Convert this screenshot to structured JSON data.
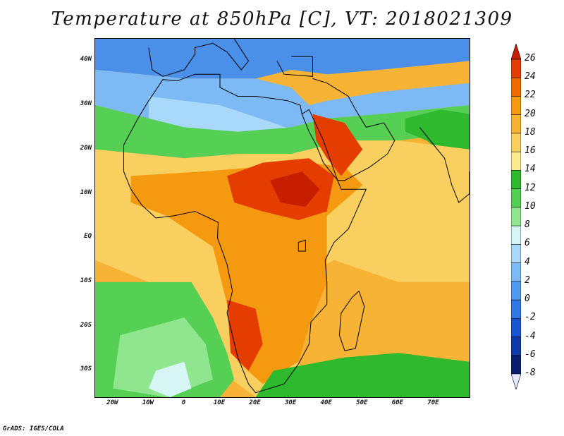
{
  "title": "Temperature at 850hPa [C], VT: 2018021309",
  "credit": "GrADS: IGES/COLA",
  "map": {
    "lon_range": [
      -25,
      80
    ],
    "lat_range": [
      -36,
      45
    ],
    "lat_ticks": [
      {
        "value": 40,
        "label": "40N"
      },
      {
        "value": 30,
        "label": "30N"
      },
      {
        "value": 20,
        "label": "20N"
      },
      {
        "value": 10,
        "label": "10N"
      },
      {
        "value": 0,
        "label": "EQ"
      },
      {
        "value": -10,
        "label": "10S"
      },
      {
        "value": -20,
        "label": "20S"
      },
      {
        "value": -30,
        "label": "30S"
      }
    ],
    "lon_ticks": [
      {
        "value": -20,
        "label": "20W"
      },
      {
        "value": -10,
        "label": "10W"
      },
      {
        "value": 0,
        "label": "0"
      },
      {
        "value": 10,
        "label": "10E"
      },
      {
        "value": 20,
        "label": "20E"
      },
      {
        "value": 30,
        "label": "30E"
      },
      {
        "value": 40,
        "label": "40E"
      },
      {
        "value": 50,
        "label": "50E"
      },
      {
        "value": 60,
        "label": "60E"
      },
      {
        "value": 70,
        "label": "70E"
      }
    ]
  },
  "colorbar": {
    "labels": [
      "26",
      "24",
      "22",
      "20",
      "18",
      "16",
      "14",
      "12",
      "10",
      "8",
      "6",
      "4",
      "2",
      "0",
      "-2",
      "-4",
      "-6",
      "-8"
    ],
    "colors": [
      "#c81e00",
      "#e53c00",
      "#f06a00",
      "#f59a10",
      "#f7b335",
      "#f9d060",
      "#fbea90",
      "#2eb92e",
      "#55d055",
      "#8fe68f",
      "#d7f5f5",
      "#a8d8fa",
      "#7cb9f5",
      "#509bf0",
      "#2f78e6",
      "#1b55d2",
      "#0e3aa8",
      "#0a1e6e"
    ]
  },
  "regions": [
    {
      "name": "europe-cold",
      "color": "#4a8fe8",
      "points": [
        [
          -25,
          45
        ],
        [
          80,
          45
        ],
        [
          80,
          40
        ],
        [
          55,
          38
        ],
        [
          40,
          37
        ],
        [
          30,
          38
        ],
        [
          20,
          36
        ],
        [
          0,
          36
        ],
        [
          -25,
          38
        ]
      ]
    },
    {
      "name": "med-cool",
      "color": "#7cb9f5",
      "points": [
        [
          -25,
          38
        ],
        [
          0,
          36
        ],
        [
          20,
          36
        ],
        [
          30,
          34
        ],
        [
          35,
          30
        ],
        [
          40,
          31
        ],
        [
          55,
          33
        ],
        [
          80,
          35
        ],
        [
          80,
          30
        ],
        [
          55,
          28
        ],
        [
          40,
          27
        ],
        [
          30,
          25
        ],
        [
          15,
          24
        ],
        [
          0,
          25
        ],
        [
          -25,
          30
        ]
      ]
    },
    {
      "name": "sahara-lightblue",
      "color": "#a8d8fa",
      "points": [
        [
          -10,
          32
        ],
        [
          10,
          30
        ],
        [
          25,
          26
        ],
        [
          32,
          24
        ],
        [
          20,
          22
        ],
        [
          5,
          22
        ],
        [
          -10,
          25
        ]
      ]
    },
    {
      "name": "north-green",
      "color": "#55d055",
      "points": [
        [
          -25,
          30
        ],
        [
          0,
          25
        ],
        [
          15,
          24
        ],
        [
          30,
          25
        ],
        [
          40,
          27
        ],
        [
          55,
          28
        ],
        [
          80,
          30
        ],
        [
          80,
          24
        ],
        [
          60,
          22
        ],
        [
          45,
          22
        ],
        [
          30,
          19
        ],
        [
          15,
          19
        ],
        [
          0,
          18
        ],
        [
          -25,
          20
        ]
      ]
    },
    {
      "name": "india-green",
      "color": "#2eb92e",
      "points": [
        [
          62,
          27
        ],
        [
          72,
          29
        ],
        [
          80,
          28
        ],
        [
          80,
          18
        ],
        [
          74,
          18
        ],
        [
          68,
          22
        ],
        [
          62,
          24
        ]
      ]
    },
    {
      "name": "sahel-warm",
      "color": "#f9d060",
      "points": [
        [
          -25,
          20
        ],
        [
          0,
          18
        ],
        [
          15,
          19
        ],
        [
          30,
          19
        ],
        [
          45,
          22
        ],
        [
          60,
          22
        ],
        [
          80,
          20
        ],
        [
          80,
          -10
        ],
        [
          60,
          -10
        ],
        [
          42,
          -5
        ],
        [
          35,
          -8
        ],
        [
          30,
          -25
        ],
        [
          35,
          -33
        ],
        [
          20,
          -36
        ],
        [
          10,
          -30
        ],
        [
          5,
          -15
        ],
        [
          -25,
          -5
        ]
      ]
    },
    {
      "name": "central-orange",
      "color": "#f59a10",
      "points": [
        [
          -15,
          14
        ],
        [
          5,
          15
        ],
        [
          20,
          16
        ],
        [
          35,
          17
        ],
        [
          45,
          16
        ],
        [
          50,
          12
        ],
        [
          40,
          5
        ],
        [
          40,
          -10
        ],
        [
          35,
          -20
        ],
        [
          32,
          -28
        ],
        [
          22,
          -33
        ],
        [
          15,
          -28
        ],
        [
          12,
          -15
        ],
        [
          8,
          -2
        ],
        [
          -5,
          5
        ],
        [
          -15,
          8
        ]
      ]
    },
    {
      "name": "hotspot-north",
      "color": "#e53c00",
      "points": [
        [
          12,
          14
        ],
        [
          22,
          17
        ],
        [
          35,
          18
        ],
        [
          42,
          14
        ],
        [
          40,
          6
        ],
        [
          32,
          4
        ],
        [
          22,
          6
        ],
        [
          14,
          8
        ]
      ]
    },
    {
      "name": "hotspot-core",
      "color": "#c81e00",
      "points": [
        [
          24,
          13
        ],
        [
          33,
          15
        ],
        [
          38,
          11
        ],
        [
          34,
          7
        ],
        [
          27,
          8
        ]
      ]
    },
    {
      "name": "arabia-hot",
      "color": "#e53c00",
      "points": [
        [
          36,
          28
        ],
        [
          45,
          26
        ],
        [
          50,
          20
        ],
        [
          44,
          14
        ],
        [
          40,
          18
        ],
        [
          37,
          22
        ]
      ]
    },
    {
      "name": "namibia-hot",
      "color": "#e53c00",
      "points": [
        [
          12,
          -14
        ],
        [
          20,
          -16
        ],
        [
          22,
          -24
        ],
        [
          18,
          -30
        ],
        [
          13,
          -26
        ]
      ]
    },
    {
      "name": "atlantic-green",
      "color": "#55d055",
      "points": [
        [
          -25,
          -10
        ],
        [
          2,
          -10
        ],
        [
          8,
          -18
        ],
        [
          12,
          -26
        ],
        [
          14,
          -32
        ],
        [
          10,
          -36
        ],
        [
          -25,
          -36
        ]
      ]
    },
    {
      "name": "atlantic-light",
      "color": "#8fe68f",
      "points": [
        [
          -18,
          -22
        ],
        [
          0,
          -18
        ],
        [
          6,
          -24
        ],
        [
          8,
          -32
        ],
        [
          -5,
          -36
        ],
        [
          -20,
          -34
        ]
      ]
    },
    {
      "name": "atlantic-cool",
      "color": "#d7f5f5",
      "points": [
        [
          -8,
          -30
        ],
        [
          0,
          -28
        ],
        [
          2,
          -34
        ],
        [
          -4,
          -36
        ],
        [
          -10,
          -34
        ]
      ]
    },
    {
      "name": "south-indian-green",
      "color": "#2eb92e",
      "points": [
        [
          25,
          -30
        ],
        [
          45,
          -27
        ],
        [
          60,
          -26
        ],
        [
          80,
          -28
        ],
        [
          80,
          -36
        ],
        [
          20,
          -36
        ]
      ]
    }
  ],
  "coastlines": [
    {
      "name": "africa-coast",
      "points": [
        [
          -17,
          21
        ],
        [
          -17,
          15
        ],
        [
          -15,
          11
        ],
        [
          -12,
          7.5
        ],
        [
          -8,
          4.5
        ],
        [
          -3,
          5
        ],
        [
          3,
          6
        ],
        [
          7,
          4.5
        ],
        [
          9.5,
          3.5
        ],
        [
          9.3,
          0
        ],
        [
          12,
          -6
        ],
        [
          13.5,
          -12
        ],
        [
          12,
          -17
        ],
        [
          15,
          -27
        ],
        [
          18,
          -33
        ],
        [
          20,
          -35
        ],
        [
          24,
          -34
        ],
        [
          28,
          -33
        ],
        [
          32,
          -28.5
        ],
        [
          35,
          -24
        ],
        [
          35.5,
          -19
        ],
        [
          40,
          -15
        ],
        [
          40,
          -10
        ],
        [
          39.5,
          -5
        ],
        [
          42,
          -1
        ],
        [
          46,
          2
        ],
        [
          51,
          11
        ],
        [
          44,
          11
        ],
        [
          43,
          13
        ],
        [
          39,
          17
        ],
        [
          37,
          21
        ],
        [
          35,
          24
        ],
        [
          33,
          28
        ],
        [
          32.5,
          30
        ],
        [
          29,
          31
        ],
        [
          25,
          31.5
        ],
        [
          20,
          32
        ],
        [
          15,
          32
        ],
        [
          10,
          34
        ],
        [
          10,
          37
        ],
        [
          3,
          37
        ],
        [
          -2,
          35.5
        ],
        [
          -6,
          35.8
        ],
        [
          -10,
          31
        ],
        [
          -13,
          27
        ],
        [
          -17,
          21
        ]
      ]
    },
    {
      "name": "arabia-coast",
      "points": [
        [
          33,
          28
        ],
        [
          35,
          29
        ],
        [
          39,
          22
        ],
        [
          43,
          13
        ],
        [
          45,
          13
        ],
        [
          52,
          16
        ],
        [
          57,
          19
        ],
        [
          59,
          22
        ],
        [
          56,
          26
        ],
        [
          51,
          25
        ],
        [
          48,
          29
        ],
        [
          46,
          32
        ],
        [
          40,
          35
        ],
        [
          36,
          36
        ]
      ]
    },
    {
      "name": "madagascar-coast",
      "points": [
        [
          49,
          -12
        ],
        [
          50.5,
          -15.5
        ],
        [
          48,
          -25
        ],
        [
          45,
          -25.5
        ],
        [
          43.5,
          -22
        ],
        [
          44,
          -17
        ],
        [
          47,
          -13.5
        ],
        [
          49,
          -12
        ]
      ]
    },
    {
      "name": "india-coast",
      "points": [
        [
          66,
          25
        ],
        [
          70,
          21
        ],
        [
          73,
          18
        ],
        [
          75,
          12
        ],
        [
          77,
          8
        ],
        [
          80,
          10
        ],
        [
          80,
          15
        ]
      ]
    },
    {
      "name": "europe-coast",
      "points": [
        [
          -10,
          43
        ],
        [
          -9,
          38
        ],
        [
          -6,
          36.5
        ],
        [
          0,
          38
        ],
        [
          3,
          41.5
        ],
        [
          3,
          43
        ],
        [
          8,
          44
        ],
        [
          12,
          42
        ],
        [
          16,
          38
        ],
        [
          18,
          40
        ],
        [
          14,
          45
        ]
      ]
    },
    {
      "name": "turkey-coast",
      "points": [
        [
          26,
          40
        ],
        [
          28,
          37
        ],
        [
          36,
          36.5
        ],
        [
          36,
          41
        ],
        [
          30,
          41
        ]
      ]
    }
  ],
  "lakes": [
    {
      "name": "lake-victoria",
      "points": [
        [
          32,
          -1
        ],
        [
          34,
          -0.5
        ],
        [
          34,
          -3
        ],
        [
          32,
          -3
        ]
      ]
    }
  ]
}
